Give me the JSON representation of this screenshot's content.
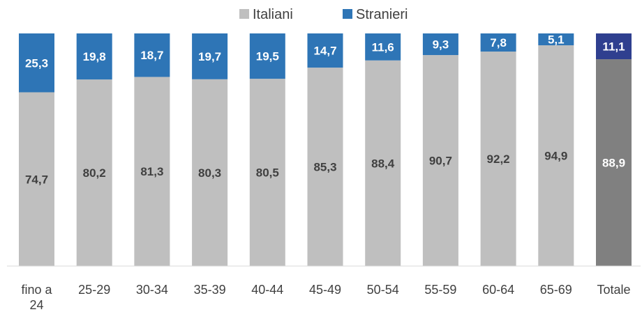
{
  "chart_data": {
    "type": "bar",
    "stacked": true,
    "percent": true,
    "categories": [
      "fino a 24",
      "25-29",
      "30-34",
      "35-39",
      "40-44",
      "45-49",
      "50-54",
      "55-59",
      "60-64",
      "65-69",
      "Totale"
    ],
    "category_lines": [
      [
        "fino a",
        "24"
      ],
      [
        "25-29"
      ],
      [
        "30-34"
      ],
      [
        "35-39"
      ],
      [
        "40-44"
      ],
      [
        "45-49"
      ],
      [
        "50-54"
      ],
      [
        "55-59"
      ],
      [
        "60-64"
      ],
      [
        "65-69"
      ],
      [
        "Totale"
      ]
    ],
    "series": [
      {
        "name": "Italiani",
        "values": [
          74.7,
          80.2,
          81.3,
          80.3,
          80.5,
          85.3,
          88.4,
          90.7,
          92.2,
          94.9,
          88.9
        ],
        "labels": [
          "74,7",
          "80,2",
          "81,3",
          "80,3",
          "80,5",
          "85,3",
          "88,4",
          "90,7",
          "92,2",
          "94,9",
          "88,9"
        ]
      },
      {
        "name": "Stranieri",
        "values": [
          25.3,
          19.8,
          18.7,
          19.7,
          19.5,
          14.7,
          11.6,
          9.3,
          7.8,
          5.1,
          11.1
        ],
        "labels": [
          "25,3",
          "19,8",
          "18,7",
          "19,7",
          "19,5",
          "14,7",
          "11,6",
          "9,3",
          "7,8",
          "5,1",
          "11,1"
        ]
      }
    ],
    "ylim": [
      0,
      100
    ],
    "legend": "top-center",
    "grid": false,
    "colors": {
      "italiani": "#bfbfbf",
      "stranieri": "#2e75b6",
      "totale_italiani": "#808080",
      "totale_stranieri": "#2f3f8f",
      "label_dark": "#404040",
      "label_light": "#ffffff",
      "axis": "#d9d9d9"
    }
  }
}
